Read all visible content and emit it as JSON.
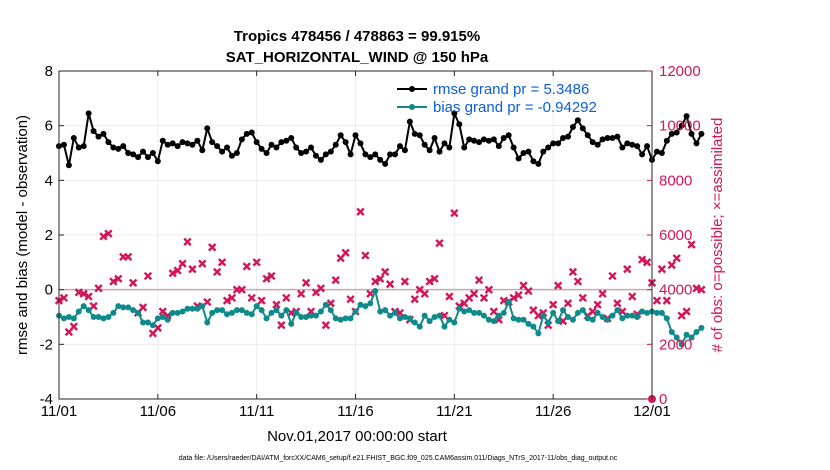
{
  "chart_data": {
    "type": "line",
    "title": "Tropics 478456 / 478863 = 99.915%",
    "subtitle": "SAT_HORIZONTAL_WIND @ 150 hPa",
    "xlabel": "Nov.01,2017 00:00:00 start",
    "ylabel_left": "rmse and bias (model - observation)",
    "ylabel_right": "# of obs: o=possible; ×=assimilated",
    "x_ticks": [
      "11/01",
      "11/06",
      "11/11",
      "11/16",
      "11/21",
      "11/26",
      "12/01"
    ],
    "x_tick_days": [
      0,
      5,
      10,
      15,
      20,
      25,
      30
    ],
    "xlim_days": [
      0,
      30
    ],
    "y_left_ticks": [
      "-4",
      "-2",
      "0",
      "2",
      "4",
      "6",
      "8"
    ],
    "ylim_left": [
      -4,
      8
    ],
    "y_right_ticks": [
      "0",
      "2000",
      "4000",
      "6000",
      "8000",
      "10000",
      "12000"
    ],
    "ylim_right": [
      0,
      12000
    ],
    "grid": true,
    "zero_line": 0,
    "legend_position": "top-right",
    "x_step_days": 0.25,
    "series": [
      {
        "name": "rmse grand pr = 5.3486",
        "axis": "left",
        "color": "#000000",
        "values": [
          5.25,
          5.3,
          4.55,
          5.55,
          5.2,
          5.25,
          6.45,
          5.8,
          5.6,
          5.7,
          5.4,
          5.2,
          5.15,
          5.25,
          5.0,
          4.95,
          4.85,
          5.05,
          4.85,
          5.0,
          4.7,
          5.45,
          5.3,
          5.35,
          5.25,
          5.4,
          5.35,
          5.3,
          5.45,
          5.1,
          5.9,
          5.4,
          5.25,
          5.05,
          5.2,
          4.9,
          5.0,
          5.5,
          5.7,
          5.75,
          5.4,
          5.15,
          5.0,
          5.3,
          5.2,
          5.4,
          5.45,
          5.55,
          5.2,
          5.0,
          5.05,
          5.2,
          4.9,
          4.75,
          4.95,
          5.05,
          5.3,
          5.65,
          5.4,
          4.95,
          5.65,
          5.35,
          4.95,
          4.85,
          4.95,
          4.75,
          4.6,
          4.95,
          4.95,
          5.25,
          5.1,
          6.15,
          5.7,
          5.65,
          5.3,
          5.1,
          5.55,
          5.05,
          5.35,
          5.2,
          6.45,
          6.05,
          5.2,
          5.5,
          5.45,
          5.4,
          5.5,
          5.45,
          5.5,
          5.25,
          5.55,
          5.65,
          5.2,
          4.8,
          5.0,
          5.05,
          4.7,
          4.6,
          5.05,
          5.2,
          5.35,
          5.35,
          5.55,
          5.6,
          5.95,
          6.2,
          5.9,
          5.65,
          5.4,
          5.3,
          5.5,
          5.55,
          5.55,
          5.6,
          5.2,
          5.35,
          5.3,
          5.25,
          4.95,
          5.25,
          4.75,
          5.05,
          5.0,
          5.45,
          5.7,
          5.75,
          6.0,
          6.35,
          5.7,
          5.35,
          5.7
        ]
      },
      {
        "name": "bias grand pr = -0.94292",
        "axis": "left",
        "color": "#0f8a8a",
        "values": [
          -0.95,
          -1.05,
          -1.0,
          -1.05,
          -0.8,
          -0.6,
          -0.75,
          -1.0,
          -1.0,
          -1.05,
          -1.0,
          -0.85,
          -0.6,
          -0.65,
          -0.65,
          -0.75,
          -0.85,
          -1.2,
          -1.2,
          -1.3,
          -1.05,
          -1.0,
          -1.1,
          -0.85,
          -0.85,
          -0.8,
          -0.7,
          -0.7,
          -0.7,
          -0.6,
          -1.2,
          -0.85,
          -0.75,
          -0.75,
          -0.9,
          -0.85,
          -0.75,
          -0.75,
          -0.85,
          -0.9,
          -0.6,
          -0.75,
          -1.05,
          -0.85,
          -0.75,
          -0.95,
          -0.75,
          -1.25,
          -0.85,
          -1.0,
          -1.0,
          -0.95,
          -0.95,
          -0.8,
          -0.55,
          -0.75,
          -1.05,
          -1.1,
          -1.05,
          -1.05,
          -0.8,
          -0.55,
          -0.6,
          -0.5,
          -0.05,
          -0.8,
          -0.75,
          -0.95,
          -0.85,
          -1.05,
          -1.0,
          -1.05,
          -1.2,
          -1.35,
          -0.95,
          -1.15,
          -1.0,
          -0.95,
          -1.35,
          -1.1,
          -1.2,
          -0.7,
          -0.8,
          -0.75,
          -0.85,
          -0.85,
          -0.95,
          -1.1,
          -1.15,
          -0.95,
          -0.85,
          -0.45,
          -1.05,
          -1.1,
          -1.1,
          -1.25,
          -1.35,
          -1.6,
          -0.95,
          -1.2,
          -0.85,
          -1.15,
          -0.75,
          -1.0,
          -1.1,
          -0.85,
          -0.75,
          -1.05,
          -1.1,
          -0.85,
          -1.0,
          -1.1,
          -0.95,
          -0.75,
          -1.05,
          -0.95,
          -0.95,
          -1.0,
          -0.8,
          -0.85,
          -0.8,
          -0.85,
          -0.85,
          -1.05,
          -1.55,
          -1.75,
          -2.0,
          -1.65,
          -1.75,
          -1.55,
          -1.4
        ]
      },
      {
        "name": "# of obs assimilated",
        "axis": "right",
        "marker": "x",
        "color": "#d3155a",
        "values": [
          3600,
          3700,
          2450,
          2650,
          3900,
          3850,
          3750,
          3400,
          4050,
          5950,
          6050,
          4300,
          4400,
          5200,
          5200,
          4250,
          3150,
          3350,
          4500,
          2400,
          2600,
          3200,
          3050,
          4600,
          4700,
          4950,
          5750,
          4750,
          3400,
          4950,
          3550,
          5550,
          4650,
          5000,
          3600,
          3700,
          4000,
          4000,
          4850,
          3700,
          5000,
          3600,
          4400,
          4500,
          3450,
          2700,
          3700,
          3150,
          3200,
          3850,
          4250,
          3200,
          3900,
          4050,
          2700,
          3500,
          4350,
          5150,
          5350,
          3650,
          3200,
          6850,
          5250,
          3850,
          4300,
          4400,
          4650,
          4200,
          3200,
          3150,
          4300,
          2900,
          3650,
          4000,
          3850,
          4300,
          4400,
          5700,
          3050,
          3750,
          6800,
          3400,
          3500,
          3700,
          3850,
          4350,
          3700,
          4000,
          3200,
          2900,
          3600,
          3550,
          3700,
          3800,
          4150,
          3950,
          3250,
          3050,
          3150,
          2700,
          3450,
          4150,
          2850,
          3500,
          4650,
          4300,
          3700,
          3050,
          3200,
          3450,
          3850,
          2950,
          4500,
          3500,
          3200,
          4750,
          3750,
          3100,
          5100,
          5000,
          4250,
          3600,
          4750,
          3600,
          4900,
          5150,
          3050,
          3200,
          5650,
          4050,
          4000
        ]
      }
    ],
    "last_point_value": 0
  },
  "legend": {
    "rmse_label": "rmse grand pr = 5.3486",
    "bias_label": "bias grand pr = -0.94292"
  },
  "footer_text": "data file: /Users/raeder/DAI/ATM_forcXX/CAM6_setup/f.e21.FHIST_BGC.f09_025.CAM6assim.011/Diags_NTrS_2017-11/obs_diag_output.nc"
}
